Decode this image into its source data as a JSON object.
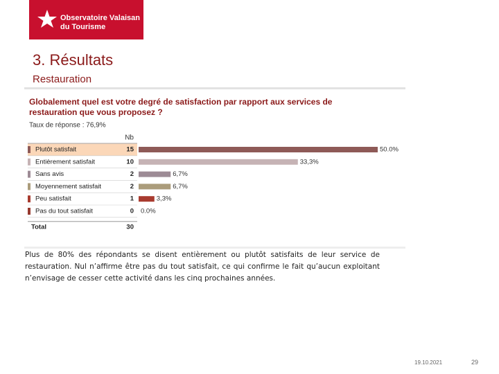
{
  "logo": {
    "lines": [
      "Observatoire Valaisan",
      "du Tourisme"
    ]
  },
  "header": {
    "title": "3. Résultats",
    "subtitle": "Restauration"
  },
  "chart_data": {
    "type": "bar",
    "title_lines": [
      "Globalement quel est votre degré de satisfaction par rapport aux services de",
      "restauration que vous proposez ?"
    ],
    "subtitle": "Taux de réponse : 76,9%",
    "count_header": "Nb",
    "categories": [
      "Plutôt satisfait",
      "Entièrement satisfait",
      "Sans avis",
      "Moyennement satisfait",
      "Peu satisfait",
      "Pas du tout satisfait"
    ],
    "counts": [
      15,
      10,
      2,
      2,
      1,
      0
    ],
    "values": [
      50.0,
      33.3,
      6.7,
      6.7,
      3.3,
      0.0
    ],
    "value_labels": [
      "50.0%",
      "33,3%",
      "6,7%",
      "6,7%",
      "3,3%",
      "0.0%"
    ],
    "colors": [
      "#8e5a57",
      "#c6b3b5",
      "#9d8b95",
      "#ab9c7b",
      "#a83b2f",
      "#973a2f"
    ],
    "total_label": "Total",
    "total": 30
  },
  "body": {
    "paragraph": "Plus de 80% des répondants se disent entièrement ou plutôt satisfaits de leur service de restauration. Nul n’affirme être pas du tout satisfait, ce qui confirme le fait qu’aucun exploitant n’envisage de cesser cette activité dans les cinq prochaines années."
  },
  "footer": {
    "date": "19.10.2021",
    "page": "29"
  }
}
